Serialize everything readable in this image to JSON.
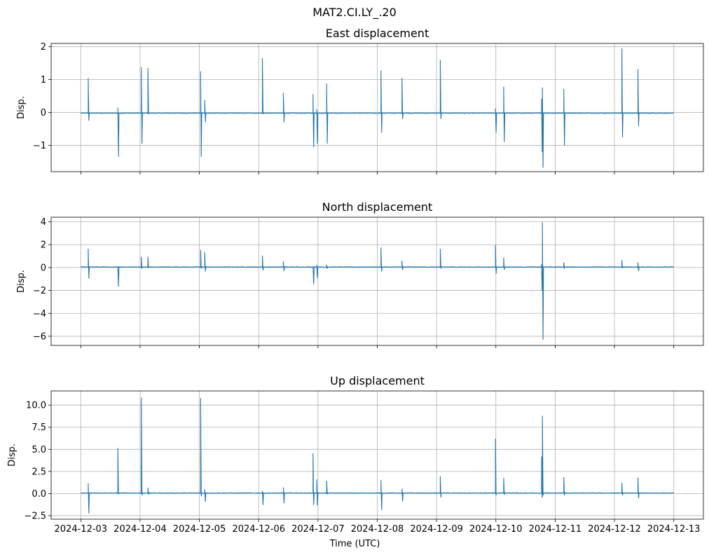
{
  "figure": {
    "suptitle": "MAT2.CI.LY_.20",
    "xlabel": "Time (UTC)"
  },
  "chart_data": [
    {
      "type": "line",
      "title": "East displacement",
      "ylabel": "Disp.",
      "xlabel": "",
      "grid": true,
      "color": "#1f77b4",
      "xlim": [
        "2024-12-02T12:00",
        "2024-12-13T12:00"
      ],
      "ylim": [
        -1.8,
        2.1
      ],
      "xticks": [
        "2024-12-03",
        "2024-12-04",
        "2024-12-05",
        "2024-12-06",
        "2024-12-07",
        "2024-12-08",
        "2024-12-09",
        "2024-12-10",
        "2024-12-11",
        "2024-12-12",
        "2024-12-13"
      ],
      "xtick_labels_shown": false,
      "yticks": [
        -1,
        0,
        1,
        2
      ],
      "ytick_labels": [
        "−1",
        "0",
        "1",
        "2"
      ],
      "data_range": [
        "2024-12-03T00:00",
        "2024-12-13T00:00"
      ],
      "baseline": -0.02,
      "spikes": [
        {
          "t": "2024-12-03T03:00",
          "max": 1.05,
          "min": -0.25
        },
        {
          "t": "2024-12-03T15:00",
          "max": 0.15,
          "min": -1.35
        },
        {
          "t": "2024-12-04T00:30",
          "max": 1.38,
          "min": -0.95
        },
        {
          "t": "2024-12-04T03:10",
          "max": 1.35,
          "min": -0.05
        },
        {
          "t": "2024-12-05T00:30",
          "max": 1.25,
          "min": -1.35
        },
        {
          "t": "2024-12-05T02:10",
          "max": 0.38,
          "min": -0.3
        },
        {
          "t": "2024-12-06T01:30",
          "max": 1.65,
          "min": -0.05
        },
        {
          "t": "2024-12-06T10:00",
          "max": 0.6,
          "min": -0.3
        },
        {
          "t": "2024-12-06T22:00",
          "max": 0.56,
          "min": -1.05
        },
        {
          "t": "2024-12-06T23:30",
          "max": 0.1,
          "min": -0.95
        },
        {
          "t": "2024-12-07T03:30",
          "max": 0.88,
          "min": -0.95
        },
        {
          "t": "2024-12-08T01:30",
          "max": 1.28,
          "min": -0.62
        },
        {
          "t": "2024-12-08T10:00",
          "max": 1.05,
          "min": -0.2
        },
        {
          "t": "2024-12-09T01:30",
          "max": 1.6,
          "min": -0.2
        },
        {
          "t": "2024-12-09T23:50",
          "max": 0.12,
          "min": -0.62
        },
        {
          "t": "2024-12-10T03:10",
          "max": 0.78,
          "min": -0.9
        },
        {
          "t": "2024-12-10T18:30",
          "max": 0.42,
          "min": -1.2
        },
        {
          "t": "2024-12-10T18:50",
          "max": 0.76,
          "min": -1.68
        },
        {
          "t": "2024-12-11T03:30",
          "max": 0.72,
          "min": -1.0
        },
        {
          "t": "2024-12-12T03:00",
          "max": 1.95,
          "min": -0.75
        },
        {
          "t": "2024-12-12T09:30",
          "max": 1.32,
          "min": -0.42
        }
      ]
    },
    {
      "type": "line",
      "title": "North displacement",
      "ylabel": "Disp.",
      "xlabel": "",
      "grid": true,
      "color": "#1f77b4",
      "xlim": [
        "2024-12-02T12:00",
        "2024-12-13T12:00"
      ],
      "ylim": [
        -6.8,
        4.4
      ],
      "xticks": [
        "2024-12-03",
        "2024-12-04",
        "2024-12-05",
        "2024-12-06",
        "2024-12-07",
        "2024-12-08",
        "2024-12-09",
        "2024-12-10",
        "2024-12-11",
        "2024-12-12",
        "2024-12-13"
      ],
      "xtick_labels_shown": false,
      "yticks": [
        -6,
        -4,
        -2,
        0,
        2,
        4
      ],
      "ytick_labels": [
        "−6",
        "−4",
        "−2",
        "0",
        "2",
        "4"
      ],
      "data_range": [
        "2024-12-03T00:00",
        "2024-12-13T00:00"
      ],
      "baseline": 0.05,
      "spikes": [
        {
          "t": "2024-12-03T03:00",
          "max": 1.65,
          "min": -0.95
        },
        {
          "t": "2024-12-03T15:00",
          "max": 0.1,
          "min": -1.65
        },
        {
          "t": "2024-12-04T00:30",
          "max": 0.95,
          "min": -0.1
        },
        {
          "t": "2024-12-04T03:10",
          "max": 0.95,
          "min": -0.05
        },
        {
          "t": "2024-12-05T00:30",
          "max": 1.55,
          "min": -0.1
        },
        {
          "t": "2024-12-05T02:10",
          "max": 1.35,
          "min": -0.35
        },
        {
          "t": "2024-12-06T01:30",
          "max": 1.05,
          "min": -0.25
        },
        {
          "t": "2024-12-06T10:00",
          "max": 0.55,
          "min": -0.3
        },
        {
          "t": "2024-12-06T22:00",
          "max": 0.1,
          "min": -1.45
        },
        {
          "t": "2024-12-06T23:30",
          "max": 0.25,
          "min": -0.9
        },
        {
          "t": "2024-12-07T03:30",
          "max": 0.25,
          "min": -0.1
        },
        {
          "t": "2024-12-08T01:30",
          "max": 1.75,
          "min": -0.35
        },
        {
          "t": "2024-12-08T10:00",
          "max": 0.6,
          "min": -0.2
        },
        {
          "t": "2024-12-09T01:30",
          "max": 1.65,
          "min": -0.1
        },
        {
          "t": "2024-12-09T23:50",
          "max": 1.95,
          "min": -0.55
        },
        {
          "t": "2024-12-10T03:10",
          "max": 0.85,
          "min": -0.2
        },
        {
          "t": "2024-12-10T18:30",
          "max": 0.3,
          "min": -2.05
        },
        {
          "t": "2024-12-10T18:50",
          "max": 3.95,
          "min": -6.3
        },
        {
          "t": "2024-12-11T03:30",
          "max": 0.45,
          "min": -0.05
        },
        {
          "t": "2024-12-12T03:00",
          "max": 0.65,
          "min": -0.05
        },
        {
          "t": "2024-12-12T09:30",
          "max": 0.45,
          "min": -0.3
        }
      ]
    },
    {
      "type": "line",
      "title": "Up displacement",
      "ylabel": "Disp.",
      "xlabel": "Time (UTC)",
      "grid": true,
      "color": "#1f77b4",
      "xlim": [
        "2024-12-02T12:00",
        "2024-12-13T12:00"
      ],
      "ylim": [
        -2.9,
        11.6
      ],
      "xticks": [
        "2024-12-03",
        "2024-12-04",
        "2024-12-05",
        "2024-12-06",
        "2024-12-07",
        "2024-12-08",
        "2024-12-09",
        "2024-12-10",
        "2024-12-11",
        "2024-12-12",
        "2024-12-13"
      ],
      "xtick_labels_shown": true,
      "yticks": [
        -2.5,
        0.0,
        2.5,
        5.0,
        7.5,
        10.0
      ],
      "ytick_labels": [
        "−2.5",
        "0.0",
        "2.5",
        "5.0",
        "7.5",
        "10.0"
      ],
      "data_range": [
        "2024-12-03T00:00",
        "2024-12-13T00:00"
      ],
      "baseline": 0.05,
      "spikes": [
        {
          "t": "2024-12-03T03:00",
          "max": 1.15,
          "min": -2.25
        },
        {
          "t": "2024-12-03T15:00",
          "max": 5.15,
          "min": -0.1
        },
        {
          "t": "2024-12-04T00:30",
          "max": 10.85,
          "min": -0.2
        },
        {
          "t": "2024-12-04T03:10",
          "max": 0.65,
          "min": -0.1
        },
        {
          "t": "2024-12-05T00:30",
          "max": 10.8,
          "min": -0.3
        },
        {
          "t": "2024-12-05T02:10",
          "max": 0.5,
          "min": -0.95
        },
        {
          "t": "2024-12-06T01:30",
          "max": 0.3,
          "min": -1.3
        },
        {
          "t": "2024-12-06T10:00",
          "max": 0.7,
          "min": -1.1
        },
        {
          "t": "2024-12-06T22:00",
          "max": 4.55,
          "min": -1.3
        },
        {
          "t": "2024-12-06T23:30",
          "max": 1.6,
          "min": -1.35
        },
        {
          "t": "2024-12-07T03:30",
          "max": 1.45,
          "min": -0.1
        },
        {
          "t": "2024-12-08T01:30",
          "max": 1.55,
          "min": -1.85
        },
        {
          "t": "2024-12-08T10:00",
          "max": 0.55,
          "min": -0.9
        },
        {
          "t": "2024-12-09T01:30",
          "max": 1.95,
          "min": -0.45
        },
        {
          "t": "2024-12-09T23:50",
          "max": 6.2,
          "min": -0.2
        },
        {
          "t": "2024-12-10T03:10",
          "max": 1.75,
          "min": -0.15
        },
        {
          "t": "2024-12-10T18:30",
          "max": 4.2,
          "min": -0.45
        },
        {
          "t": "2024-12-10T18:50",
          "max": 8.8,
          "min": -0.2
        },
        {
          "t": "2024-12-11T03:30",
          "max": 1.85,
          "min": -0.2
        },
        {
          "t": "2024-12-12T03:00",
          "max": 1.2,
          "min": -0.2
        },
        {
          "t": "2024-12-12T09:30",
          "max": 1.8,
          "min": -0.55
        }
      ]
    }
  ]
}
